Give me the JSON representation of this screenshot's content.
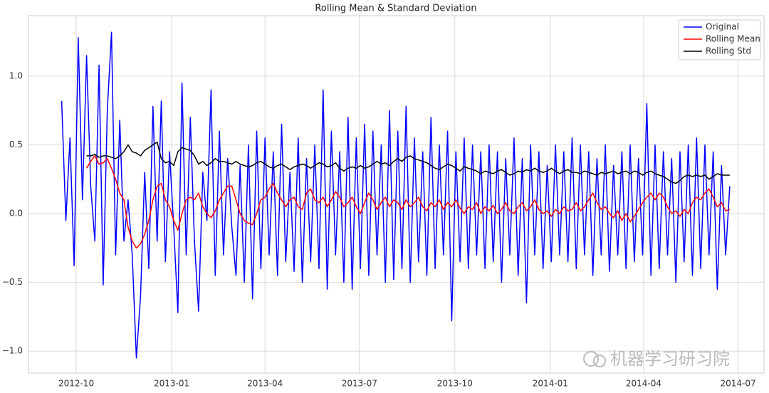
{
  "chart_data": {
    "type": "line",
    "title": "Rolling Mean & Standard Deviation",
    "watermark": "机器学习研习院",
    "x": [
      16,
      20,
      24,
      28,
      32,
      36,
      40,
      44,
      48,
      52,
      56,
      60,
      64,
      68,
      72,
      76,
      80,
      84,
      88,
      92,
      96,
      100,
      104,
      108,
      112,
      116,
      120,
      124,
      128,
      132,
      136,
      140,
      144,
      148,
      152,
      156,
      160,
      164,
      168,
      172,
      176,
      180,
      184,
      188,
      192,
      196,
      200,
      204,
      208,
      212,
      216,
      220,
      224,
      228,
      232,
      236,
      240,
      244,
      248,
      252,
      256,
      260,
      264,
      268,
      272,
      276,
      280,
      284,
      288,
      292,
      296,
      300,
      304,
      308,
      312,
      316,
      320,
      324,
      328,
      332,
      336,
      340,
      344,
      348,
      352,
      356,
      360,
      364,
      368,
      372,
      376,
      380,
      384,
      388,
      392,
      396,
      400,
      404,
      408,
      412,
      416,
      420,
      424,
      428,
      432,
      436,
      440,
      444,
      448,
      452,
      456,
      460,
      464,
      468,
      472,
      476,
      480,
      484,
      488,
      492,
      496,
      500,
      504,
      508,
      512,
      516,
      520,
      524,
      528,
      532,
      536,
      540,
      544,
      548,
      552,
      556,
      560,
      564,
      568,
      572,
      576,
      580,
      584,
      588,
      592,
      596,
      600,
      604,
      608,
      612,
      616,
      620,
      624,
      628,
      632,
      636,
      640,
      644,
      648,
      652,
      656,
      660
    ],
    "xlim": [
      -16,
      693
    ],
    "xticks": [
      {
        "value": 30,
        "label": "2012-10"
      },
      {
        "value": 122,
        "label": "2013-01"
      },
      {
        "value": 212,
        "label": "2013-04"
      },
      {
        "value": 303,
        "label": "2013-07"
      },
      {
        "value": 395,
        "label": "2013-10"
      },
      {
        "value": 487,
        "label": "2014-01"
      },
      {
        "value": 577,
        "label": "2014-04"
      },
      {
        "value": 668,
        "label": "2014-07"
      }
    ],
    "ylim": [
      -1.16,
      1.44
    ],
    "yticks": [
      {
        "value": -1,
        "label": "−1.0"
      },
      {
        "value": -0.5,
        "label": "−0.5"
      },
      {
        "value": 0,
        "label": "0.0"
      },
      {
        "value": 0.5,
        "label": "0.5"
      },
      {
        "value": 1,
        "label": "1.0"
      }
    ],
    "grid": true,
    "legend": "upper right",
    "series": [
      {
        "name": "Original",
        "color": "#0000ff",
        "values": [
          0.82,
          -0.05,
          0.55,
          -0.38,
          1.28,
          0.1,
          1.15,
          0.2,
          -0.2,
          1.08,
          -0.52,
          0.75,
          1.32,
          -0.3,
          0.68,
          -0.2,
          0.1,
          -0.3,
          -1.05,
          -0.6,
          0.3,
          -0.4,
          0.78,
          -0.2,
          0.82,
          -0.35,
          0.45,
          -0.1,
          -0.72,
          0.95,
          -0.3,
          0.7,
          -0.2,
          -0.71,
          0.3,
          -0.05,
          0.9,
          -0.45,
          0.6,
          -0.3,
          0.4,
          -0.1,
          -0.45,
          0.35,
          -0.5,
          0.5,
          -0.62,
          0.6,
          -0.4,
          0.55,
          -0.3,
          0.45,
          -0.45,
          0.65,
          -0.35,
          0.3,
          -0.42,
          0.55,
          -0.5,
          0.4,
          -0.35,
          0.5,
          -0.4,
          0.9,
          -0.55,
          0.6,
          -0.3,
          0.45,
          -0.5,
          0.7,
          -0.55,
          0.55,
          -0.4,
          0.65,
          -0.45,
          0.6,
          -0.3,
          0.5,
          -0.5,
          0.75,
          -0.48,
          0.6,
          -0.4,
          0.78,
          -0.5,
          0.55,
          -0.35,
          0.45,
          -0.45,
          0.7,
          -0.4,
          0.5,
          -0.3,
          0.6,
          -0.78,
          0.45,
          -0.35,
          0.55,
          -0.4,
          0.5,
          -0.3,
          0.45,
          -0.4,
          0.5,
          -0.35,
          0.45,
          -0.5,
          0.4,
          -0.3,
          0.55,
          -0.45,
          0.4,
          -0.65,
          0.5,
          -0.3,
          0.45,
          -0.4,
          0.35,
          -0.35,
          0.5,
          -0.3,
          0.45,
          -0.35,
          0.55,
          -0.4,
          0.5,
          -0.3,
          0.45,
          -0.45,
          0.4,
          -0.3,
          0.5,
          -0.42,
          0.35,
          -0.3,
          0.45,
          -0.4,
          0.5,
          -0.35,
          0.4,
          -0.3,
          0.8,
          -0.45,
          0.5,
          -0.4,
          0.45,
          -0.3,
          0.4,
          -0.5,
          0.45,
          -0.35,
          0.5,
          -0.45,
          0.55,
          -0.4,
          0.5,
          -0.3,
          0.45,
          -0.55,
          0.35,
          -0.3,
          0.2
        ]
      },
      {
        "name": "Rolling Mean",
        "color": "#ff0000",
        "values": [
          null,
          null,
          null,
          null,
          null,
          null,
          0.33,
          0.38,
          0.42,
          0.36,
          0.37,
          0.4,
          0.33,
          0.25,
          0.15,
          0.1,
          -0.1,
          -0.2,
          -0.25,
          -0.22,
          -0.15,
          -0.05,
          0.1,
          0.2,
          0.22,
          0.1,
          0.05,
          -0.05,
          -0.12,
          0.0,
          0.1,
          0.12,
          0.1,
          0.15,
          0.05,
          0.0,
          -0.03,
          0.02,
          0.1,
          0.15,
          0.2,
          0.2,
          0.1,
          0.0,
          -0.05,
          -0.07,
          -0.08,
          0.0,
          0.1,
          0.12,
          0.18,
          0.22,
          0.15,
          0.1,
          0.05,
          0.1,
          0.12,
          0.05,
          0.03,
          0.15,
          0.18,
          0.1,
          0.08,
          0.12,
          0.05,
          0.1,
          0.16,
          0.12,
          0.05,
          0.08,
          0.12,
          0.05,
          0.0,
          0.08,
          0.15,
          0.1,
          0.03,
          0.08,
          0.12,
          0.05,
          0.1,
          0.08,
          0.03,
          0.1,
          0.05,
          0.08,
          0.12,
          0.05,
          0.02,
          0.08,
          0.05,
          0.1,
          0.03,
          0.08,
          0.05,
          0.1,
          0.04,
          0.0,
          0.05,
          0.03,
          0.08,
          0.0,
          0.05,
          0.02,
          0.06,
          0.0,
          0.03,
          0.08,
          0.02,
          0.0,
          0.05,
          0.08,
          0.02,
          0.05,
          0.1,
          0.03,
          0.0,
          0.02,
          -0.02,
          0.03,
          0.0,
          0.05,
          0.02,
          0.03,
          0.08,
          0.02,
          0.05,
          0.1,
          0.15,
          0.08,
          0.03,
          0.05,
          0.0,
          -0.03,
          0.02,
          -0.05,
          0.0,
          -0.06,
          -0.02,
          0.03,
          0.08,
          0.12,
          0.15,
          0.1,
          0.15,
          0.12,
          0.05,
          0.0,
          0.02,
          -0.02,
          0.03,
          0.0,
          0.08,
          0.12,
          0.1,
          0.15,
          0.18,
          0.12,
          0.05,
          0.08,
          0.02,
          0.03
        ]
      },
      {
        "name": "Rolling Std",
        "color": "#000000",
        "values": [
          null,
          null,
          null,
          null,
          null,
          null,
          0.42,
          0.42,
          0.43,
          0.41,
          0.42,
          0.42,
          0.41,
          0.4,
          0.42,
          0.45,
          0.5,
          0.45,
          0.44,
          0.42,
          0.46,
          0.48,
          0.5,
          0.52,
          0.4,
          0.37,
          0.38,
          0.35,
          0.45,
          0.48,
          0.47,
          0.46,
          0.42,
          0.36,
          0.38,
          0.35,
          0.37,
          0.4,
          0.38,
          0.38,
          0.37,
          0.36,
          0.38,
          0.36,
          0.35,
          0.34,
          0.35,
          0.37,
          0.38,
          0.36,
          0.34,
          0.33,
          0.35,
          0.36,
          0.34,
          0.32,
          0.34,
          0.35,
          0.36,
          0.35,
          0.33,
          0.35,
          0.37,
          0.36,
          0.34,
          0.35,
          0.37,
          0.33,
          0.31,
          0.33,
          0.34,
          0.33,
          0.35,
          0.33,
          0.34,
          0.36,
          0.38,
          0.36,
          0.37,
          0.35,
          0.38,
          0.4,
          0.38,
          0.41,
          0.42,
          0.4,
          0.39,
          0.38,
          0.37,
          0.35,
          0.33,
          0.32,
          0.34,
          0.36,
          0.35,
          0.33,
          0.31,
          0.34,
          0.33,
          0.32,
          0.31,
          0.29,
          0.31,
          0.3,
          0.29,
          0.31,
          0.32,
          0.3,
          0.28,
          0.29,
          0.31,
          0.3,
          0.32,
          0.31,
          0.33,
          0.31,
          0.3,
          0.31,
          0.33,
          0.31,
          0.29,
          0.31,
          0.32,
          0.3,
          0.3,
          0.29,
          0.31,
          0.3,
          0.29,
          0.28,
          0.3,
          0.29,
          0.3,
          0.31,
          0.29,
          0.3,
          0.31,
          0.29,
          0.31,
          0.3,
          0.28,
          0.3,
          0.31,
          0.29,
          0.28,
          0.27,
          0.25,
          0.23,
          0.22,
          0.24,
          0.27,
          0.28,
          0.27,
          0.28,
          0.27,
          0.28,
          0.25,
          0.27,
          0.29,
          0.28,
          0.28,
          0.28
        ]
      }
    ]
  }
}
